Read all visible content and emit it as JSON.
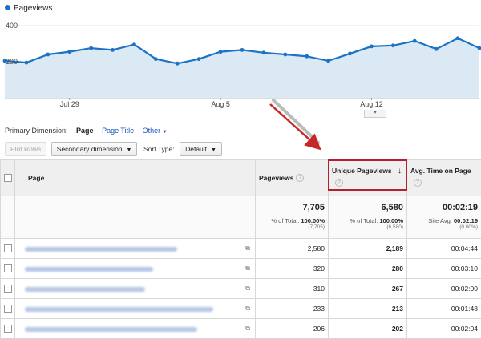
{
  "legend": {
    "label": "Pageviews",
    "color": "#1c73c6"
  },
  "chart_data": {
    "type": "area",
    "series": [
      {
        "name": "Pageviews",
        "values": [
          205,
          195,
          240,
          255,
          275,
          265,
          295,
          215,
          190,
          215,
          255,
          265,
          250,
          240,
          230,
          205,
          245,
          285,
          290,
          315,
          270,
          330,
          275
        ]
      }
    ],
    "ylim": [
      0,
      400
    ],
    "yticks": [
      "200",
      "400"
    ],
    "xtick_labels": [
      "Jul 29",
      "Aug 5",
      "Aug 12"
    ],
    "xtick_index": [
      3,
      10,
      17
    ],
    "grid": true,
    "line_color": "#1c73c6",
    "fill_color": "#dbe9f5"
  },
  "dimension": {
    "label": "Primary Dimension:",
    "options": [
      "Page",
      "Page Title",
      "Other"
    ],
    "active": "Page"
  },
  "toolbar": {
    "plot_rows": "Plot Rows",
    "secondary": "Secondary dimension",
    "sort_label": "Sort Type:",
    "sort_value": "Default"
  },
  "table": {
    "headers": {
      "page": "Page",
      "pageviews": "Pageviews",
      "unique": "Unique Pageviews",
      "avg": "Avg. Time on Page"
    },
    "totals": {
      "pageviews": {
        "value": "7,705",
        "pct_label": "% of Total:",
        "pct": "100.00%",
        "sub": "(7,705)"
      },
      "unique": {
        "value": "6,580",
        "pct_label": "% of Total:",
        "pct": "100.00%",
        "sub": "(6,580)"
      },
      "avg": {
        "value": "00:02:19",
        "pct_label": "Site Avg:",
        "pct": "00:02:19",
        "sub": "(0.00%)"
      }
    },
    "rows": [
      {
        "pageviews": "2,580",
        "unique": "2,189",
        "avg": "00:04:44"
      },
      {
        "pageviews": "320",
        "unique": "280",
        "avg": "00:03:10"
      },
      {
        "pageviews": "310",
        "unique": "267",
        "avg": "00:02:00"
      },
      {
        "pageviews": "233",
        "unique": "213",
        "avg": "00:01:48"
      },
      {
        "pageviews": "206",
        "unique": "202",
        "avg": "00:02:04"
      }
    ]
  },
  "annotation": {
    "color": "#c62828"
  },
  "icons": {
    "sort": "sort-down-arrow-icon",
    "help": "help-icon",
    "external": "external-link-icon"
  }
}
